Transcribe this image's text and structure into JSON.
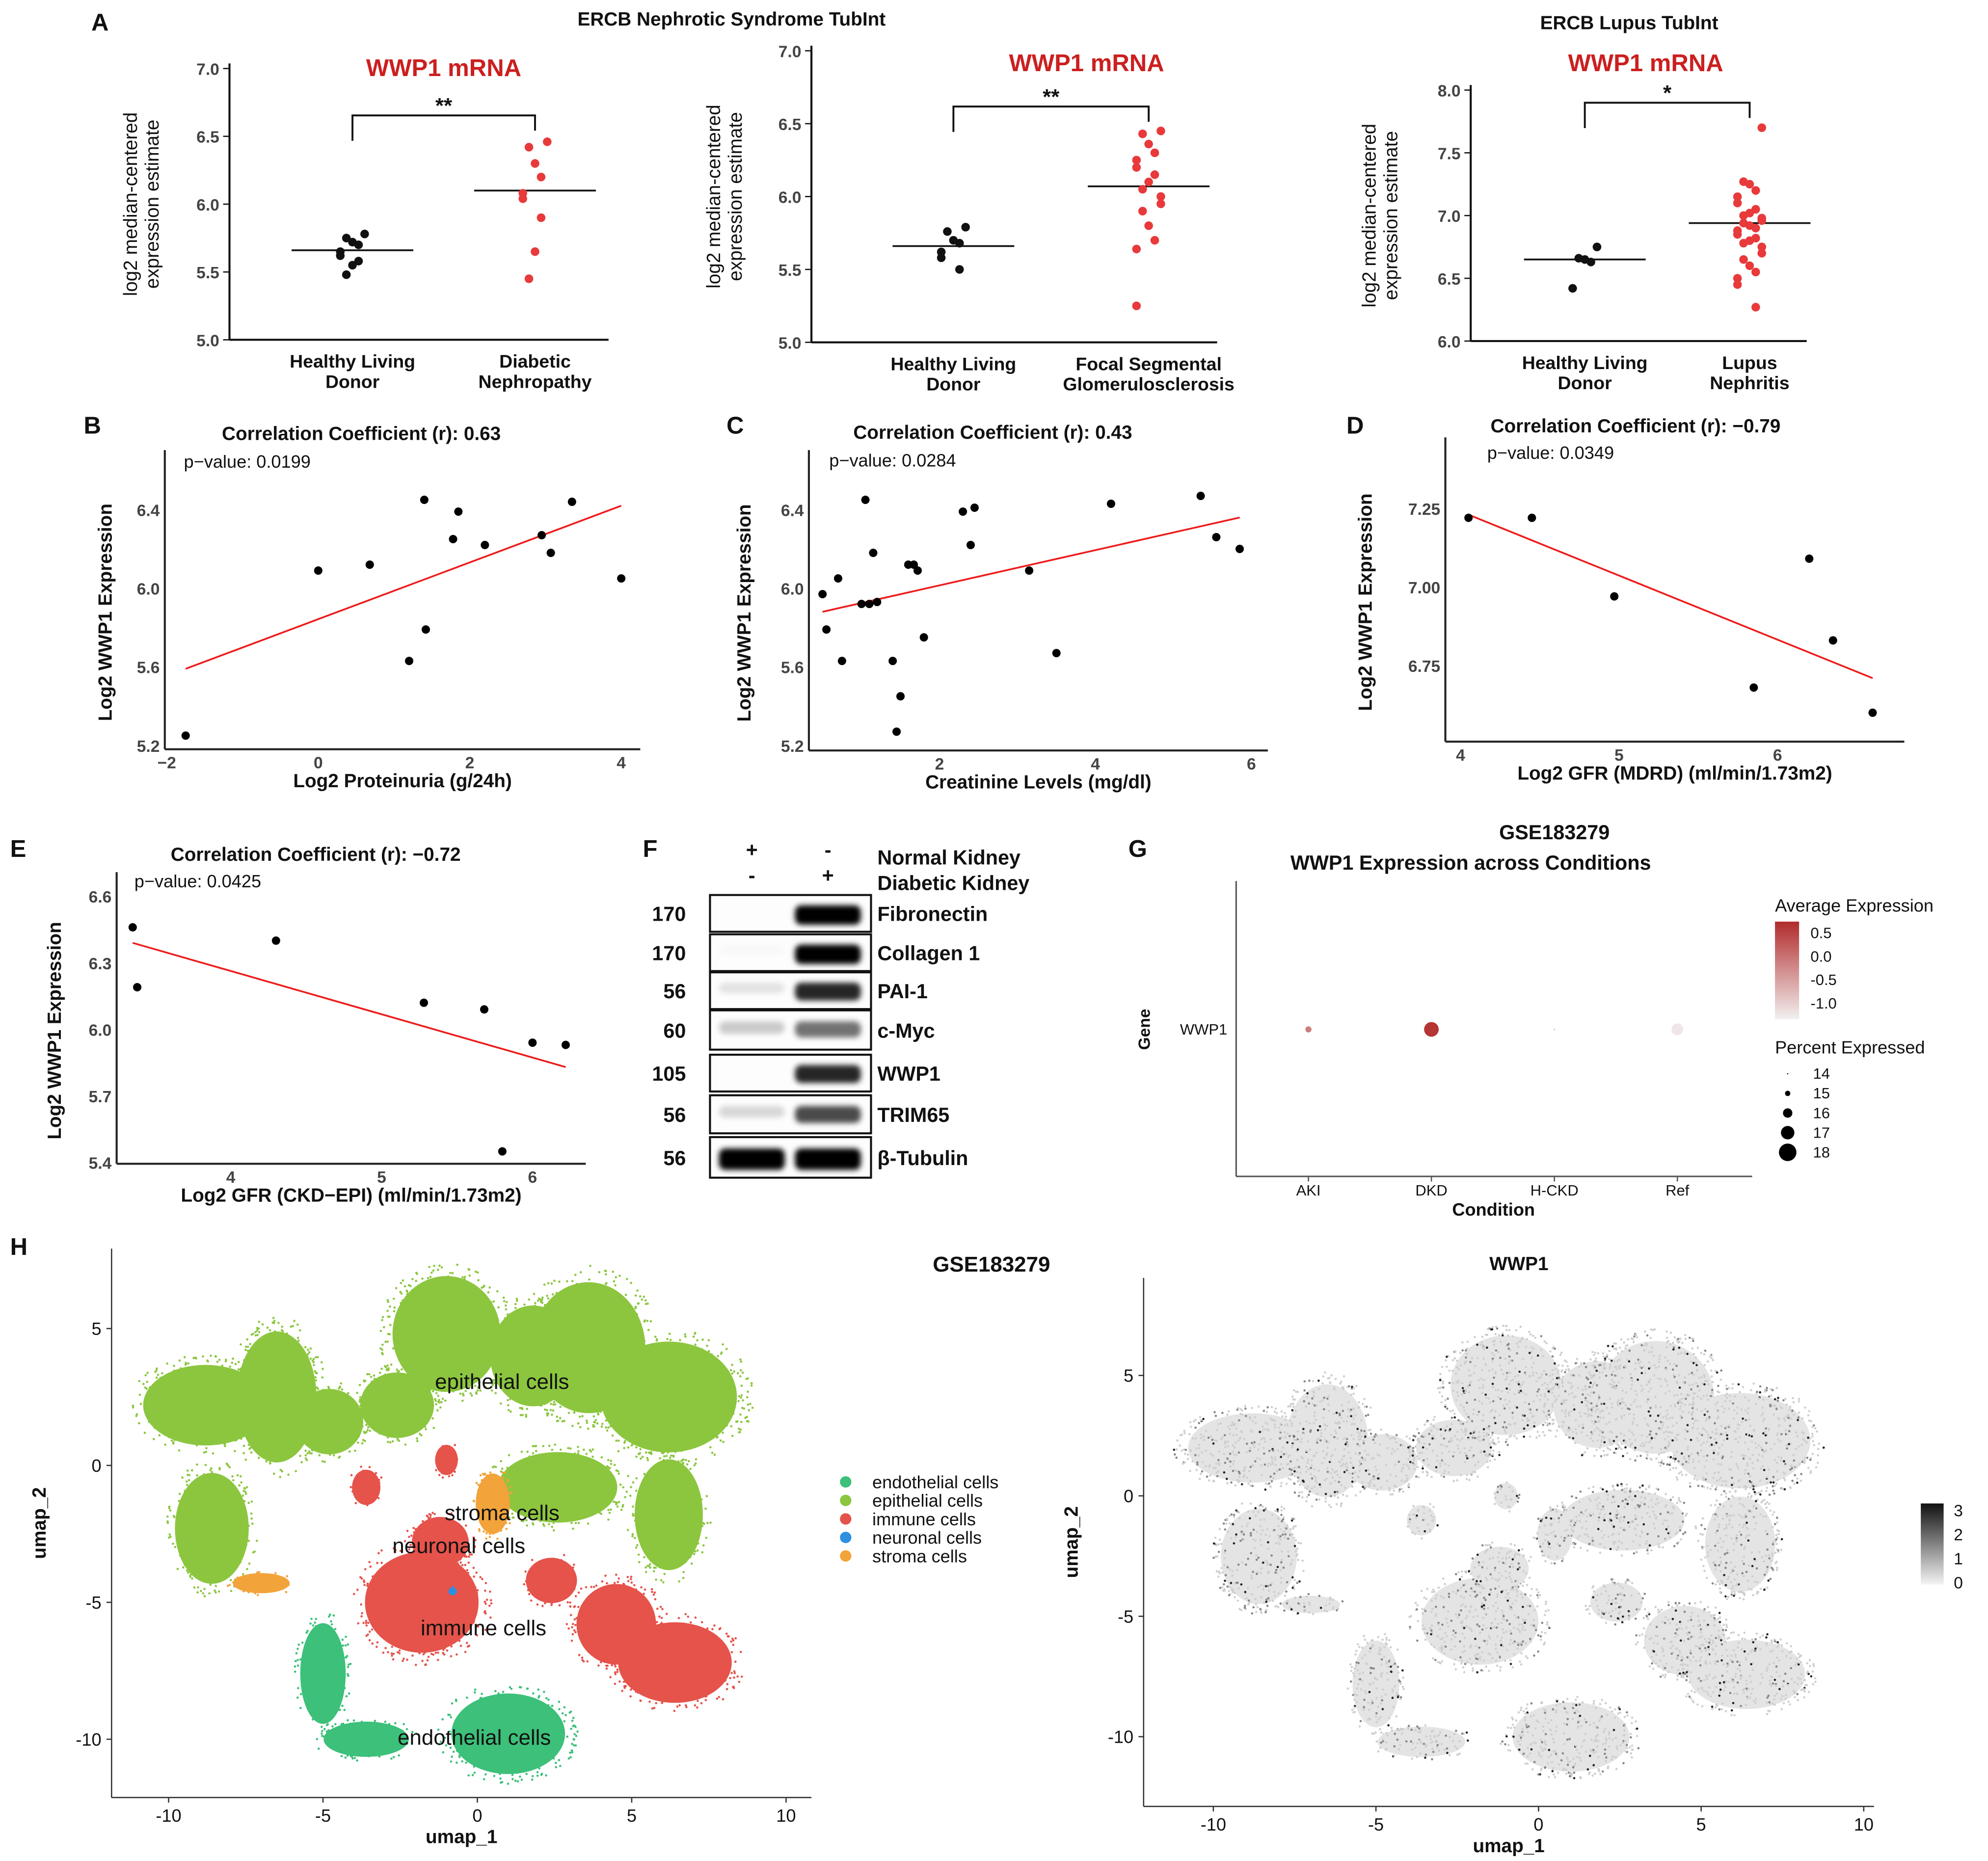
{
  "panel_letters": [
    "A",
    "B",
    "C",
    "D",
    "E",
    "F",
    "G",
    "H"
  ],
  "panel_a": {
    "group_title_1": "ERCB Nephrotic Syndrome TubInt",
    "group_title_2": "ERCB Lupus TubInt"
  },
  "chart_data": [
    {
      "id": "A1",
      "type": "scatter",
      "subtype": "strip",
      "title": "WWP1 mRNA",
      "ylabel": [
        "log2 median-centered",
        "expression estimate"
      ],
      "ylim": [
        5.0,
        7.0
      ],
      "yticks": [
        5.0,
        5.5,
        6.0,
        6.5,
        7.0
      ],
      "ytick_labels": [
        "5.0",
        "5.5",
        "6.0",
        "6.5",
        "7.0"
      ],
      "significance": "**",
      "groups": [
        {
          "label": [
            "Healthy Living",
            "Donor"
          ],
          "color": "#111111",
          "median": 5.66,
          "values": [
            5.78,
            5.75,
            5.72,
            5.7,
            5.65,
            5.62,
            5.58,
            5.55,
            5.48
          ]
        },
        {
          "label": [
            "Diabetic",
            "Nephropathy"
          ],
          "color": "#e8393b",
          "median": 6.1,
          "values": [
            6.46,
            6.42,
            6.3,
            6.2,
            6.08,
            6.04,
            5.9,
            5.65,
            5.45
          ]
        }
      ]
    },
    {
      "id": "A2",
      "type": "scatter",
      "subtype": "strip",
      "title": "WWP1 mRNA",
      "ylabel": [
        "log2 median-centered",
        "expression estimate"
      ],
      "ylim": [
        5.0,
        7.0
      ],
      "yticks": [
        5.0,
        5.5,
        6.0,
        6.5,
        7.0
      ],
      "ytick_labels": [
        "5.0",
        "5.5",
        "6.0",
        "6.5",
        "7.0"
      ],
      "significance": "**",
      "groups": [
        {
          "label": [
            "Healthy Living",
            "Donor"
          ],
          "color": "#111111",
          "median": 5.66,
          "values": [
            5.79,
            5.76,
            5.7,
            5.68,
            5.62,
            5.58,
            5.5
          ]
        },
        {
          "label": [
            "Focal Segmental",
            "Glomerulosclerosis"
          ],
          "color": "#e8393b",
          "median": 6.07,
          "values": [
            6.45,
            6.43,
            6.36,
            6.3,
            6.25,
            6.2,
            6.15,
            6.1,
            6.05,
            6.0,
            5.95,
            5.9,
            5.8,
            5.7,
            5.64,
            5.25
          ]
        }
      ]
    },
    {
      "id": "A3",
      "type": "scatter",
      "subtype": "strip",
      "title": "WWP1 mRNA",
      "ylabel": [
        "log2 median-centered",
        "expression estimate"
      ],
      "ylim": [
        6.0,
        8.0
      ],
      "yticks": [
        6.0,
        6.5,
        7.0,
        7.5,
        8.0
      ],
      "ytick_labels": [
        "6.0",
        "6.5",
        "7.0",
        "7.5",
        "8.0"
      ],
      "significance": "*",
      "groups": [
        {
          "label": [
            "Healthy Living",
            "Donor"
          ],
          "color": "#111111",
          "median": 6.65,
          "values": [
            6.75,
            6.66,
            6.65,
            6.63,
            6.42
          ]
        },
        {
          "label": [
            "Lupus",
            "Nephritis"
          ],
          "color": "#e8393b",
          "median": 6.94,
          "values": [
            7.7,
            7.27,
            7.25,
            7.2,
            7.15,
            7.1,
            7.05,
            7.02,
            7.0,
            6.98,
            6.96,
            6.94,
            6.92,
            6.9,
            6.88,
            6.85,
            6.82,
            6.8,
            6.78,
            6.75,
            6.7,
            6.65,
            6.6,
            6.55,
            6.5,
            6.45,
            6.27
          ]
        }
      ]
    },
    {
      "id": "B",
      "type": "scatter",
      "title": "Correlation Coefficient (r): 0.63",
      "pvalue": "p−value:  0.0199",
      "xlabel": "Log2 Proteinuria (g/24h)",
      "ylabel": "Log2 WWP1 Expression",
      "xticks": [
        -2,
        0,
        2,
        4
      ],
      "xtick_labels": [
        "−2",
        "0",
        "2",
        "4"
      ],
      "yticks": [
        5.2,
        5.6,
        6.0,
        6.4
      ],
      "ytick_labels": [
        "5.2",
        "5.6",
        "6.0",
        "6.4"
      ],
      "points": [
        [
          -1.75,
          5.25
        ],
        [
          0,
          6.09
        ],
        [
          0.68,
          6.12
        ],
        [
          1.2,
          5.63
        ],
        [
          1.4,
          6.45
        ],
        [
          1.42,
          5.79
        ],
        [
          1.78,
          6.25
        ],
        [
          1.85,
          6.39
        ],
        [
          2.2,
          6.22
        ],
        [
          2.95,
          6.27
        ],
        [
          3.07,
          6.18
        ],
        [
          3.35,
          6.44
        ],
        [
          4.0,
          6.05
        ]
      ],
      "fit": [
        [
          -1.75,
          5.59
        ],
        [
          4.0,
          6.42
        ]
      ]
    },
    {
      "id": "C",
      "type": "scatter",
      "title": "Correlation Coefficient (r): 0.43",
      "pvalue": "p−value:  0.0284",
      "xlabel": "Creatinine Levels (mg/dl)",
      "ylabel": "Log2 WWP1 Expression",
      "xticks": [
        2,
        4,
        6
      ],
      "xtick_labels": [
        "2",
        "4",
        "6"
      ],
      "yticks": [
        5.2,
        5.6,
        6.0,
        6.4
      ],
      "ytick_labels": [
        "5.2",
        "5.6",
        "6.0",
        "6.4"
      ],
      "points": [
        [
          0.5,
          5.97
        ],
        [
          0.55,
          5.79
        ],
        [
          0.7,
          6.05
        ],
        [
          0.75,
          5.63
        ],
        [
          1.0,
          5.92
        ],
        [
          1.05,
          6.45
        ],
        [
          1.1,
          5.92
        ],
        [
          1.15,
          6.18
        ],
        [
          1.2,
          5.93
        ],
        [
          1.4,
          5.63
        ],
        [
          1.45,
          5.27
        ],
        [
          1.5,
          5.45
        ],
        [
          1.6,
          6.12
        ],
        [
          1.67,
          6.12
        ],
        [
          1.72,
          6.09
        ],
        [
          1.8,
          5.75
        ],
        [
          2.3,
          6.39
        ],
        [
          2.4,
          6.22
        ],
        [
          2.45,
          6.41
        ],
        [
          3.15,
          6.09
        ],
        [
          3.5,
          5.67
        ],
        [
          4.2,
          6.43
        ],
        [
          5.35,
          6.47
        ],
        [
          5.55,
          6.26
        ],
        [
          5.85,
          6.2
        ]
      ],
      "fit": [
        [
          0.5,
          5.88
        ],
        [
          5.85,
          6.36
        ]
      ]
    },
    {
      "id": "D",
      "type": "scatter",
      "title": "Correlation Coefficient (r): −0.79",
      "pvalue": "p−value:  0.0349",
      "xlabel": "Log2 GFR (MDRD) (ml/min/1.73m2)",
      "ylabel": "Log2 WWP1 Expression",
      "xticks": [
        4,
        5,
        6
      ],
      "xtick_labels": [
        "4",
        "5",
        "6"
      ],
      "yticks": [
        6.75,
        7.0,
        7.25
      ],
      "ytick_labels": [
        "6.75",
        "7.00",
        "7.25"
      ],
      "points": [
        [
          4.05,
          7.22
        ],
        [
          4.45,
          7.22
        ],
        [
          4.97,
          6.97
        ],
        [
          5.85,
          6.68
        ],
        [
          6.2,
          7.09
        ],
        [
          6.35,
          6.83
        ],
        [
          6.6,
          6.6
        ]
      ],
      "fit": [
        [
          4.05,
          7.23
        ],
        [
          6.6,
          6.71
        ]
      ]
    },
    {
      "id": "E",
      "type": "scatter",
      "title": "Correlation Coefficient (r): −0.72",
      "pvalue": "p−value:  0.0425",
      "xlabel": "Log2 GFR (CKD−EPI) (ml/min/1.73m2)",
      "ylabel": "Log2 WWP1 Expression",
      "xticks": [
        4,
        5,
        6
      ],
      "xtick_labels": [
        "4",
        "5",
        "6"
      ],
      "yticks": [
        5.4,
        5.7,
        6.0,
        6.3,
        6.6
      ],
      "ytick_labels": [
        "5.4",
        "5.7",
        "6.0",
        "6.3",
        "6.6"
      ],
      "points": [
        [
          3.35,
          6.46
        ],
        [
          3.38,
          6.19
        ],
        [
          4.3,
          6.4
        ],
        [
          5.28,
          6.12
        ],
        [
          5.68,
          6.09
        ],
        [
          5.8,
          5.45
        ],
        [
          6.0,
          5.94
        ],
        [
          6.22,
          5.93
        ]
      ],
      "fit": [
        [
          3.35,
          6.39
        ],
        [
          6.22,
          5.83
        ]
      ]
    },
    {
      "id": "G",
      "type": "scatter",
      "subtype": "dotplot",
      "supertitle": "GSE183279",
      "title": "WWP1 Expression across Conditions",
      "xlabel": "Condition",
      "ylabel": "Gene",
      "gene": "WWP1",
      "conditions": [
        "AKI",
        "DKD",
        "H-CKD",
        "Ref"
      ],
      "avg_expression": [
        -0.1,
        0.7,
        -0.6,
        -1.3
      ],
      "percent_expressed": [
        15.2,
        17.3,
        14.0,
        16.6
      ],
      "color_legend_title": "Average Expression",
      "color_ticks": [
        "0.5",
        "0.0",
        "-0.5",
        "-1.0"
      ],
      "color_range": [
        -1.4,
        0.8
      ],
      "color_high": "#b22b2b",
      "color_low": "#f2f0f0",
      "size_legend_title": "Percent Expressed",
      "size_ticks": [
        "14",
        "15",
        "16",
        "17",
        "18"
      ]
    },
    {
      "id": "H1",
      "type": "scatter",
      "subtype": "umap",
      "title": "GSE183279",
      "xlabel": "umap_1",
      "ylabel": "umap_2",
      "xticks": [
        -10,
        -5,
        0,
        5,
        10
      ],
      "xtick_labels": [
        "-10",
        "-5",
        "0",
        "5",
        "10"
      ],
      "yticks": [
        -10,
        -5,
        0,
        5
      ],
      "ytick_labels": [
        "-10",
        "-5",
        "0",
        "5"
      ],
      "legend": [
        {
          "label": "endothelial cells",
          "color": "#3cc07a"
        },
        {
          "label": "epithelial cells",
          "color": "#8cc63f"
        },
        {
          "label": "immune cells",
          "color": "#e5534b"
        },
        {
          "label": "neuronal cells",
          "color": "#2d8fe0"
        },
        {
          "label": "stroma cells",
          "color": "#f2a33a"
        }
      ],
      "cluster_labels": [
        {
          "text": "epithelial cells",
          "at": [
            0.8,
            2.8
          ]
        },
        {
          "text": "stroma cells",
          "at": [
            0.8,
            -2.0
          ]
        },
        {
          "text": "neuronal cells",
          "at": [
            -0.6,
            -3.2
          ]
        },
        {
          "text": "immune cells",
          "at": [
            0.2,
            -6.2
          ]
        },
        {
          "text": "endothelial cells",
          "at": [
            -0.1,
            -10.2
          ]
        }
      ],
      "clusters": [
        {
          "type": 1,
          "c": [
            -8.8,
            2.2
          ],
          "r": [
            2.2,
            1.6
          ]
        },
        {
          "type": 1,
          "c": [
            -6.5,
            2.5
          ],
          "r": [
            1.4,
            2.6
          ]
        },
        {
          "type": 1,
          "c": [
            -4.8,
            1.6
          ],
          "r": [
            1.2,
            1.3
          ]
        },
        {
          "type": 1,
          "c": [
            -2.6,
            2.2
          ],
          "r": [
            1.3,
            1.3
          ]
        },
        {
          "type": 1,
          "c": [
            -1.0,
            4.8
          ],
          "r": [
            1.9,
            2.3
          ]
        },
        {
          "type": 1,
          "c": [
            1.8,
            4.0
          ],
          "r": [
            1.5,
            2.0
          ]
        },
        {
          "type": 1,
          "c": [
            3.6,
            4.3
          ],
          "r": [
            2.0,
            2.6
          ]
        },
        {
          "type": 1,
          "c": [
            6.2,
            2.5
          ],
          "r": [
            2.4,
            2.2
          ]
        },
        {
          "type": 1,
          "c": [
            -8.6,
            -2.3
          ],
          "r": [
            1.3,
            2.2
          ]
        },
        {
          "type": 1,
          "c": [
            2.6,
            -0.8
          ],
          "r": [
            2.1,
            1.4
          ]
        },
        {
          "type": 1,
          "c": [
            6.2,
            -1.8
          ],
          "r": [
            1.2,
            2.2
          ]
        },
        {
          "type": 2,
          "c": [
            -1.8,
            -5.0
          ],
          "r": [
            2.0,
            2.0
          ]
        },
        {
          "type": 2,
          "c": [
            -1.2,
            -2.8
          ],
          "r": [
            1.0,
            1.0
          ]
        },
        {
          "type": 2,
          "c": [
            4.5,
            -5.8
          ],
          "r": [
            1.4,
            1.6
          ]
        },
        {
          "type": 2,
          "c": [
            6.4,
            -7.2
          ],
          "r": [
            2.0,
            1.6
          ]
        },
        {
          "type": 2,
          "c": [
            2.4,
            -4.2
          ],
          "r": [
            0.9,
            0.9
          ]
        },
        {
          "type": 2,
          "c": [
            -3.6,
            -0.8
          ],
          "r": [
            0.5,
            0.7
          ]
        },
        {
          "type": 2,
          "c": [
            -1.0,
            0.2
          ],
          "r": [
            0.4,
            0.6
          ]
        },
        {
          "type": 0,
          "c": [
            1.0,
            -9.8
          ],
          "r": [
            2.0,
            1.6
          ]
        },
        {
          "type": 0,
          "c": [
            -5.0,
            -7.6
          ],
          "r": [
            0.8,
            2.0
          ]
        },
        {
          "type": 0,
          "c": [
            -3.6,
            -10.0
          ],
          "r": [
            1.5,
            0.7
          ]
        },
        {
          "type": 4,
          "c": [
            0.5,
            -1.4
          ],
          "r": [
            0.6,
            1.2
          ]
        },
        {
          "type": 4,
          "c": [
            -7.0,
            -4.3
          ],
          "r": [
            1.0,
            0.4
          ]
        },
        {
          "type": 3,
          "c": [
            -0.8,
            -4.6
          ],
          "r": [
            0.15,
            0.15
          ]
        }
      ]
    },
    {
      "id": "H2",
      "type": "scatter",
      "subtype": "feature-umap",
      "title": "WWP1",
      "xlabel": "umap_1",
      "ylabel": "umap_2",
      "xticks": [
        -10,
        -5,
        0,
        5,
        10
      ],
      "xtick_labels": [
        "-10",
        "-5",
        "0",
        "5",
        "10"
      ],
      "yticks": [
        -10,
        -5,
        0,
        5
      ],
      "ytick_labels": [
        "-10",
        "-5",
        "0",
        "5"
      ],
      "colorbar_ticks": [
        "3",
        "2",
        "1",
        "0"
      ],
      "color_range": [
        0,
        3
      ]
    }
  ],
  "western_blot": {
    "header_rows": [
      {
        "signs": [
          "+",
          "-"
        ],
        "label": "Normal Kidney"
      },
      {
        "signs": [
          "-",
          "+"
        ],
        "label": "Diabetic Kidney"
      }
    ],
    "bands": [
      {
        "mw": "170",
        "protein": "Fibronectin",
        "intensity": [
          0.0,
          1.0
        ]
      },
      {
        "mw": "170",
        "protein": "Collagen 1",
        "intensity": [
          0.02,
          1.0
        ]
      },
      {
        "mw": "56",
        "protein": "PAI-1",
        "intensity": [
          0.1,
          0.85
        ]
      },
      {
        "mw": "60",
        "protein": "c-Myc",
        "intensity": [
          0.2,
          0.55
        ]
      },
      {
        "mw": "105",
        "protein": "WWP1",
        "intensity": [
          0.0,
          0.85
        ]
      },
      {
        "mw": "56",
        "protein": "TRIM65",
        "intensity": [
          0.15,
          0.7
        ]
      },
      {
        "mw": "56",
        "protein": "β-Tubulin",
        "intensity": [
          1.0,
          1.0
        ]
      }
    ]
  }
}
